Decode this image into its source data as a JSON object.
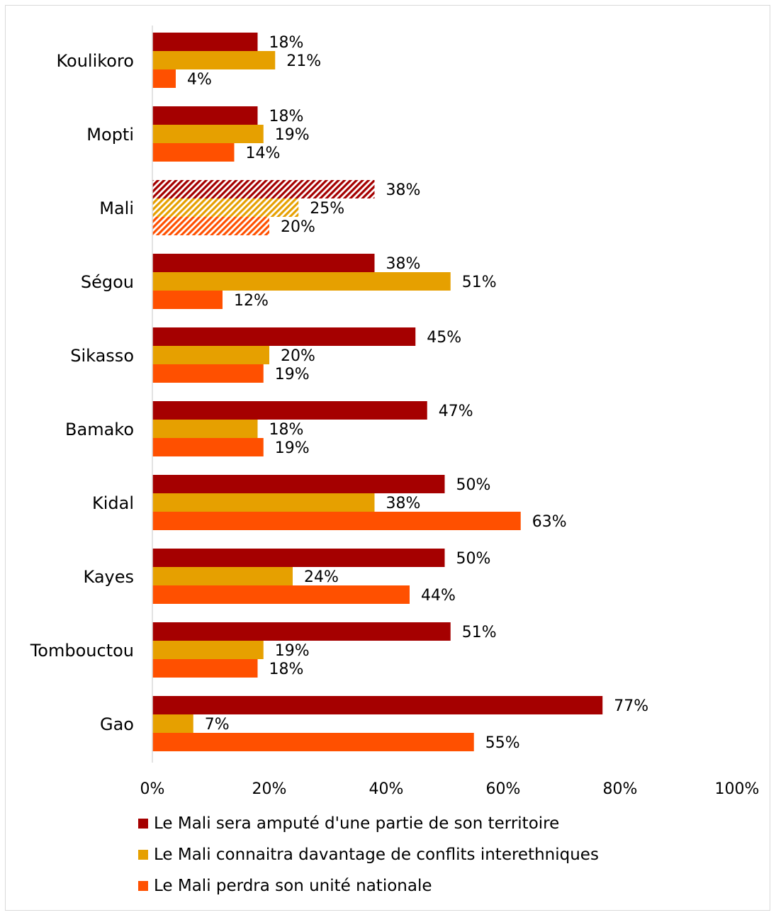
{
  "chart_data": {
    "type": "bar",
    "orientation": "horizontal",
    "categories": [
      "Koulikoro",
      "Mopti",
      "Mali",
      "Ségou",
      "Sikasso",
      "Bamako",
      "Kidal",
      "Kayes",
      "Tombouctou",
      "Gao"
    ],
    "highlighted_category": "Mali",
    "series": [
      {
        "name": "Le Mali sera amputé d'une partie de son territoire",
        "color": "#A50000",
        "values": [
          18,
          18,
          38,
          38,
          45,
          47,
          50,
          50,
          51,
          77
        ],
        "labels": [
          "18%",
          "18%",
          "38%",
          "38%",
          "45%",
          "47%",
          "50%",
          "50%",
          "51%",
          "77%"
        ]
      },
      {
        "name": "Le Mali connaitra davantage de conflits interethniques",
        "color": "#E6A000",
        "values": [
          21,
          19,
          25,
          51,
          20,
          18,
          38,
          24,
          19,
          7
        ],
        "labels": [
          "21%",
          "19%",
          "25%",
          "51%",
          "20%",
          "18%",
          "38%",
          "24%",
          "19%",
          "7%"
        ]
      },
      {
        "name": "Le Mali perdra son unité nationale",
        "color": "#FF5000",
        "values": [
          4,
          14,
          20,
          12,
          19,
          19,
          63,
          44,
          18,
          55
        ],
        "labels": [
          "4%",
          "14%",
          "20%",
          "12%",
          "19%",
          "19%",
          "63%",
          "44%",
          "18%",
          "55%"
        ]
      }
    ],
    "xlim": [
      0,
      100
    ],
    "x_ticks": [
      "0%",
      "20%",
      "40%",
      "60%",
      "80%",
      "100%"
    ],
    "grid": false,
    "legend_position": "bottom"
  }
}
